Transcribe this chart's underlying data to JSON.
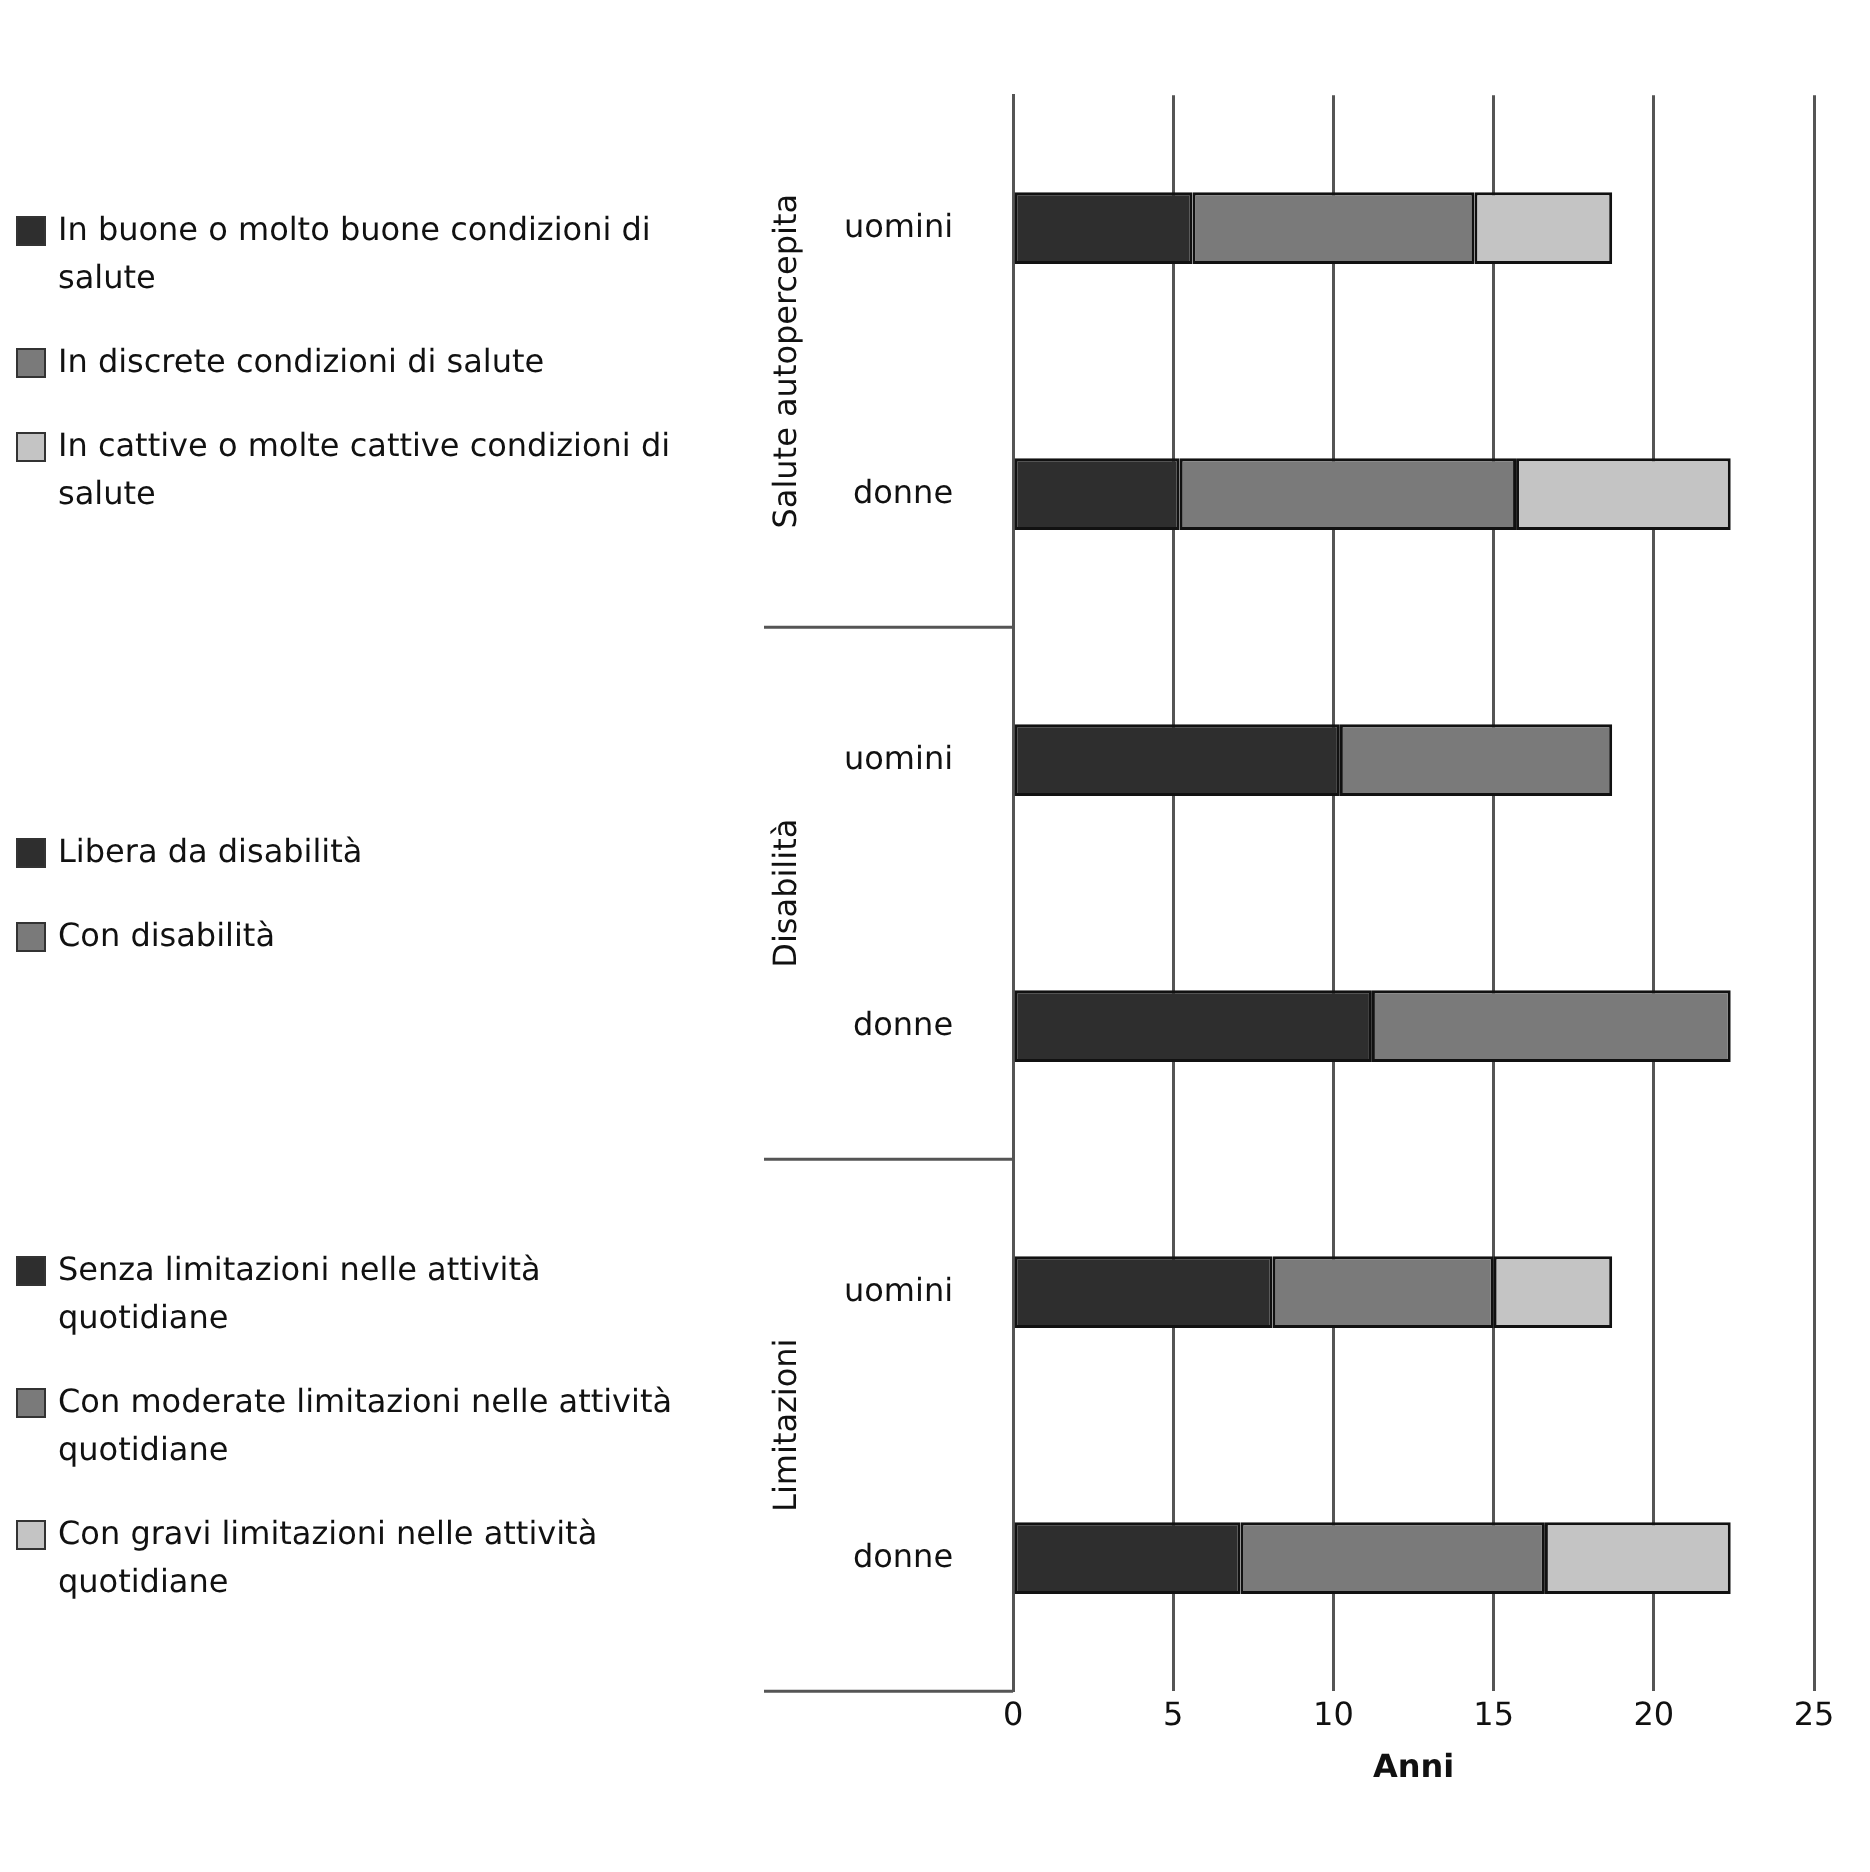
{
  "chart_data": {
    "type": "bar",
    "orientation": "horizontal",
    "stacked": true,
    "categories": [
      "uomini",
      "donne",
      "uomini",
      "donne",
      "uomini",
      "donne"
    ],
    "series": [
      {
        "name": "In buone o molto buone condizioni di salute",
        "color": "#2e2e2e",
        "values": [
          5.6,
          5.2,
          null,
          null,
          null,
          null
        ]
      },
      {
        "name": "In discrete condizioni di salute",
        "color": "#7a7a7a",
        "values": [
          8.8,
          10.5,
          null,
          null,
          null,
          null
        ]
      },
      {
        "name": "In cattive o molte cattive condizioni di salute",
        "color": "#c4c4c4",
        "values": [
          4.3,
          6.7,
          null,
          null,
          null,
          null
        ]
      },
      {
        "name": "Libera da disabilità",
        "color": "#2e2e2e",
        "values": [
          null,
          null,
          10.2,
          11.2,
          null,
          null
        ]
      },
      {
        "name": "Con disabilità",
        "color": "#7a7a7a",
        "values": [
          null,
          null,
          8.5,
          11.2,
          null,
          null
        ]
      },
      {
        "name": "Senza limitazioni nelle attività quotidiane",
        "color": "#2e2e2e",
        "values": [
          null,
          null,
          null,
          null,
          8.1,
          7.1
        ]
      },
      {
        "name": "Con moderate limitazioni nelle attività quotidiane",
        "color": "#7a7a7a",
        "values": [
          null,
          null,
          null,
          null,
          6.9,
          9.5
        ]
      },
      {
        "name": "Con gravi limitazioni nelle attività quotidiane",
        "color": "#c4c4c4",
        "values": [
          null,
          null,
          null,
          null,
          3.7,
          5.8
        ]
      }
    ],
    "xlabel": "Anni",
    "xlim": [
      0,
      25
    ],
    "xticks": [
      0,
      5,
      10,
      15,
      20,
      25
    ],
    "annotations": [
      "Salute autopercepita",
      "Disabilità",
      "Limitazioni"
    ],
    "grid": "x",
    "legend": "left"
  }
}
